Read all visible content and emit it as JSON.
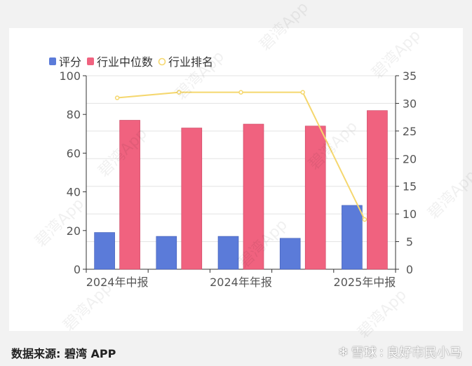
{
  "chart_data": {
    "type": "bar",
    "categories": [
      "2024年中报",
      "",
      "2024年年报",
      "",
      "2025年中报"
    ],
    "x_tick_labels": [
      "2024年中报",
      "2024年年报",
      "2025年中报"
    ],
    "series": [
      {
        "name": "评分",
        "type": "bar",
        "axis": "left",
        "values": [
          19,
          17,
          17,
          16,
          33
        ]
      },
      {
        "name": "行业中位数",
        "type": "bar",
        "axis": "left",
        "values": [
          77,
          73,
          75,
          74,
          82
        ]
      },
      {
        "name": "行业排名",
        "type": "line",
        "axis": "right",
        "values": [
          31,
          32,
          32,
          32,
          9
        ]
      }
    ],
    "y_left": {
      "min": 0,
      "max": 100,
      "ticks": [
        0,
        20,
        40,
        60,
        80,
        100
      ]
    },
    "y_right": {
      "min": 0,
      "max": 35,
      "ticks": [
        0,
        5,
        10,
        15,
        20,
        25,
        30,
        35
      ]
    },
    "grid": true,
    "legend_position": "top-left"
  },
  "colors": {
    "score": "#5b7bd9",
    "median": "#f0627f",
    "rank": "#f5d76e"
  },
  "footer": {
    "source": "数据来源: 碧湾 APP",
    "brand_name": "雪球",
    "brand_user": "良好市民小马"
  },
  "watermark": "碧湾App"
}
